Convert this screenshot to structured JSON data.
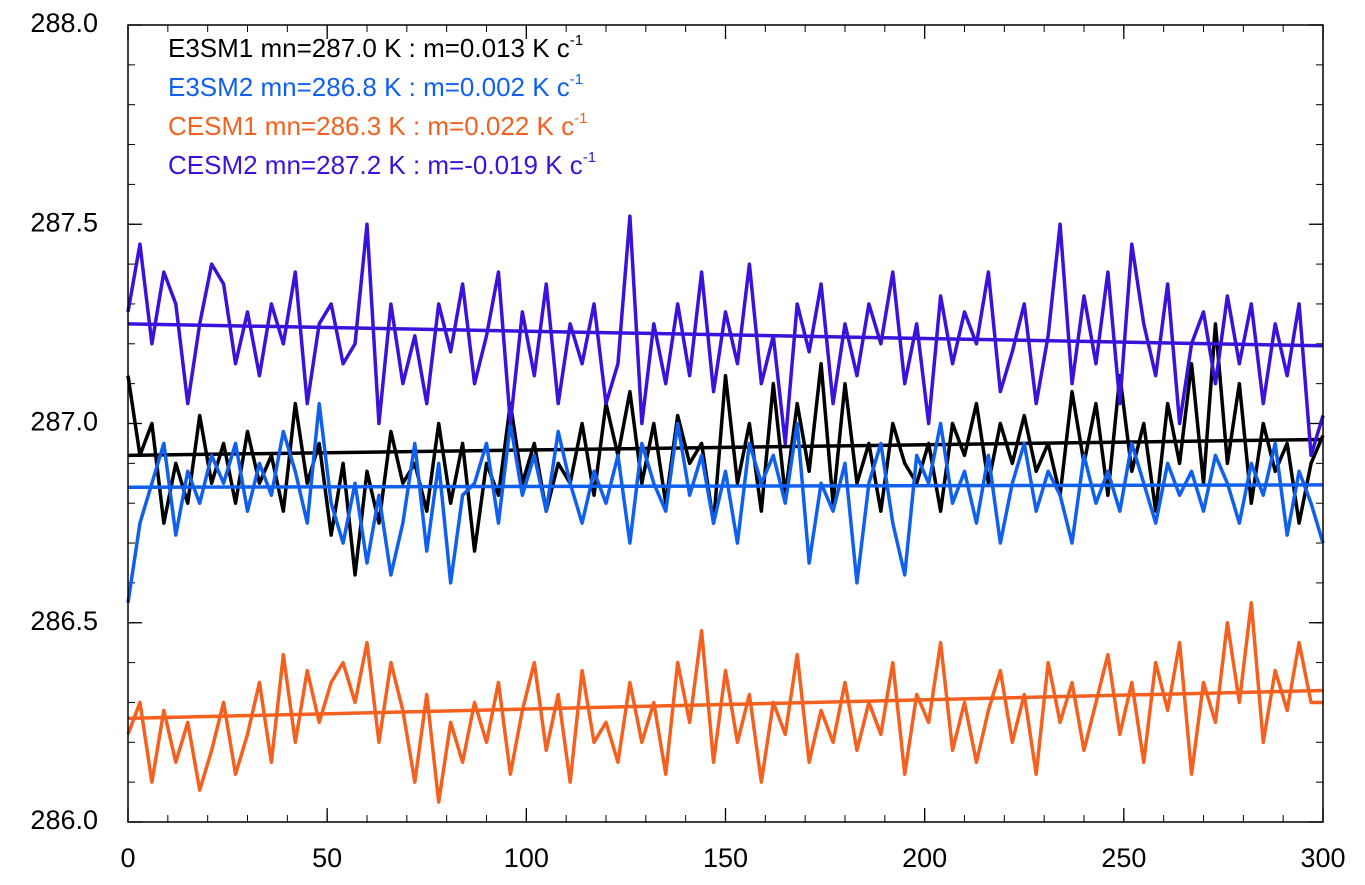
{
  "chart_data": {
    "type": "line",
    "x": [
      0,
      3,
      6,
      9,
      12,
      15,
      18,
      21,
      24,
      27,
      30,
      33,
      36,
      39,
      42,
      45,
      48,
      51,
      54,
      57,
      60,
      63,
      66,
      69,
      72,
      75,
      78,
      81,
      84,
      87,
      90,
      93,
      96,
      99,
      102,
      105,
      108,
      111,
      114,
      117,
      120,
      123,
      126,
      129,
      132,
      135,
      138,
      141,
      144,
      147,
      150,
      153,
      156,
      159,
      162,
      165,
      168,
      171,
      174,
      177,
      180,
      183,
      186,
      189,
      192,
      195,
      198,
      201,
      204,
      207,
      210,
      213,
      216,
      219,
      222,
      225,
      228,
      231,
      234,
      237,
      240,
      243,
      246,
      249,
      252,
      255,
      258,
      261,
      264,
      267,
      270,
      273,
      276,
      279,
      282,
      285,
      288,
      291,
      294,
      297,
      300
    ],
    "trend_x": [
      0,
      300
    ],
    "xlim": [
      0,
      300
    ],
    "xticks": [
      0,
      50,
      100,
      150,
      200,
      250,
      300
    ],
    "ylim": [
      286,
      288
    ],
    "yticks": [
      {
        "value": 286,
        "label": "286.0"
      },
      {
        "value": 286.5,
        "label": "286.5"
      },
      {
        "value": 287,
        "label": "287.0"
      },
      {
        "value": 287.5,
        "label": "287.5"
      },
      {
        "value": 288,
        "label": "288.0"
      }
    ],
    "minor_ticks": {
      "x": 10,
      "y": 0.1
    },
    "grid": false,
    "series": [
      {
        "name": "E3SM1 mn=287.0 K : m=0.013 K c",
        "name_sup": "-1",
        "color": "#000000",
        "trend": [
          286.92,
          286.96
        ],
        "values": [
          287.12,
          286.92,
          287.0,
          286.75,
          286.9,
          286.8,
          287.02,
          286.85,
          286.95,
          286.8,
          286.98,
          286.85,
          286.92,
          286.78,
          287.05,
          286.85,
          286.95,
          286.72,
          286.9,
          286.62,
          286.88,
          286.75,
          286.98,
          286.85,
          286.9,
          286.78,
          287.0,
          286.8,
          286.95,
          286.68,
          286.9,
          286.82,
          287.05,
          286.85,
          286.95,
          286.78,
          286.9,
          286.85,
          287.0,
          286.82,
          287.05,
          286.92,
          287.08,
          286.85,
          287.0,
          286.8,
          287.02,
          286.9,
          286.95,
          286.75,
          287.12,
          286.85,
          287.0,
          286.78,
          287.1,
          286.82,
          287.05,
          286.88,
          287.15,
          286.8,
          287.1,
          286.85,
          286.95,
          286.78,
          287.0,
          286.9,
          286.85,
          286.95,
          286.78,
          287.0,
          286.92,
          287.05,
          286.85,
          287.0,
          286.9,
          287.02,
          286.88,
          286.95,
          286.82,
          287.08,
          286.9,
          287.05,
          286.82,
          287.12,
          286.88,
          287.0,
          286.78,
          287.05,
          286.9,
          287.15,
          286.85,
          287.25,
          286.9,
          287.1,
          286.8,
          287.0,
          286.88,
          286.95,
          286.75,
          286.9,
          286.97
        ]
      },
      {
        "name": "E3SM2 mn=286.8 K : m=0.002 K c",
        "name_sup": "-1",
        "color": "#1060f0",
        "trend": [
          286.84,
          286.846
        ],
        "values": [
          286.55,
          286.75,
          286.85,
          286.95,
          286.72,
          286.88,
          286.8,
          286.92,
          286.85,
          286.95,
          286.78,
          286.9,
          286.82,
          286.98,
          286.88,
          286.75,
          287.05,
          286.8,
          286.7,
          286.85,
          286.65,
          286.82,
          286.62,
          286.75,
          286.95,
          286.68,
          286.9,
          286.6,
          286.82,
          286.85,
          286.95,
          286.75,
          287.0,
          286.82,
          286.92,
          286.78,
          286.98,
          286.85,
          286.75,
          286.88,
          286.8,
          286.92,
          286.7,
          286.95,
          286.85,
          286.78,
          287.0,
          286.82,
          286.92,
          286.75,
          286.88,
          286.7,
          286.95,
          286.85,
          286.92,
          286.8,
          287.0,
          286.65,
          286.85,
          286.78,
          286.9,
          286.6,
          286.85,
          286.95,
          286.75,
          286.62,
          286.92,
          286.85,
          287.0,
          286.8,
          286.88,
          286.75,
          286.92,
          286.7,
          286.85,
          286.95,
          286.78,
          286.88,
          286.82,
          286.7,
          286.92,
          286.8,
          286.88,
          286.78,
          286.95,
          286.85,
          286.75,
          286.9,
          286.82,
          286.88,
          286.78,
          286.92,
          286.85,
          286.75,
          286.9,
          286.82,
          286.95,
          286.72,
          286.88,
          286.8,
          286.7
        ]
      },
      {
        "name": "CESM1 mn=286.3 K : m=0.022 K c",
        "name_sup": "-1",
        "color": "#f5601e",
        "trend": [
          286.26,
          286.33
        ],
        "values": [
          286.22,
          286.3,
          286.1,
          286.28,
          286.15,
          286.25,
          286.08,
          286.18,
          286.3,
          286.12,
          286.22,
          286.35,
          286.15,
          286.42,
          286.2,
          286.38,
          286.25,
          286.35,
          286.4,
          286.3,
          286.45,
          286.2,
          286.4,
          286.28,
          286.1,
          286.32,
          286.05,
          286.25,
          286.15,
          286.3,
          286.2,
          286.35,
          286.12,
          286.28,
          286.4,
          286.18,
          286.32,
          286.1,
          286.38,
          286.2,
          286.25,
          286.15,
          286.35,
          286.2,
          286.3,
          286.12,
          286.4,
          286.25,
          286.48,
          286.15,
          286.38,
          286.2,
          286.32,
          286.1,
          286.3,
          286.22,
          286.42,
          286.15,
          286.28,
          286.2,
          286.35,
          286.18,
          286.3,
          286.22,
          286.4,
          286.12,
          286.32,
          286.25,
          286.45,
          286.18,
          286.3,
          286.15,
          286.28,
          286.38,
          286.2,
          286.32,
          286.12,
          286.4,
          286.25,
          286.35,
          286.18,
          286.3,
          286.42,
          286.22,
          286.35,
          286.15,
          286.4,
          286.28,
          286.45,
          286.12,
          286.35,
          286.25,
          286.5,
          286.3,
          286.55,
          286.2,
          286.38,
          286.28,
          286.45,
          286.3,
          286.3
        ]
      },
      {
        "name": "CESM2 mn=287.2 K : m=-0.019 K c",
        "name_sup": "-1",
        "color": "#3a12dc",
        "trend": [
          287.25,
          287.195
        ],
        "values": [
          287.28,
          287.45,
          287.2,
          287.38,
          287.3,
          287.05,
          287.25,
          287.4,
          287.35,
          287.15,
          287.28,
          287.12,
          287.3,
          287.2,
          287.38,
          287.05,
          287.25,
          287.3,
          287.15,
          287.2,
          287.5,
          287.0,
          287.3,
          287.1,
          287.22,
          287.05,
          287.3,
          287.18,
          287.35,
          287.1,
          287.22,
          287.38,
          287.0,
          287.28,
          287.12,
          287.35,
          287.05,
          287.25,
          287.15,
          287.3,
          287.05,
          287.15,
          287.52,
          287.0,
          287.25,
          287.1,
          287.3,
          287.12,
          287.38,
          287.08,
          287.28,
          287.15,
          287.4,
          287.1,
          287.22,
          286.95,
          287.3,
          287.18,
          287.35,
          287.05,
          287.25,
          287.12,
          287.3,
          287.2,
          287.38,
          287.1,
          287.25,
          287.0,
          287.32,
          287.15,
          287.28,
          287.2,
          287.38,
          287.08,
          287.18,
          287.3,
          287.05,
          287.22,
          287.5,
          287.1,
          287.32,
          287.15,
          287.38,
          287.05,
          287.45,
          287.25,
          287.12,
          287.35,
          287.0,
          287.2,
          287.28,
          287.1,
          287.32,
          287.15,
          287.3,
          287.05,
          287.25,
          287.12,
          287.3,
          286.92,
          287.02
        ]
      }
    ]
  }
}
